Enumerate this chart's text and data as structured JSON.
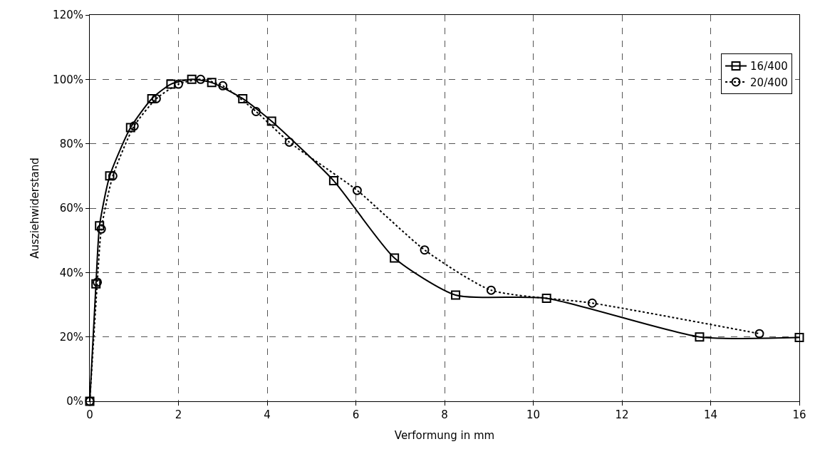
{
  "chart_data": {
    "type": "line",
    "xlabel": "Verformung in mm",
    "ylabel": "Ausziehwiderstand",
    "series": [
      {
        "name": "16/400",
        "color": "#000000",
        "marker": "square",
        "line_style": "solid",
        "x": [
          0,
          0.14,
          0.22,
          0.45,
          0.92,
          1.4,
          1.83,
          2.3,
          2.75,
          3.45,
          4.1,
          5.5,
          6.87,
          8.25,
          10.3,
          13.75,
          16
        ],
        "values": [
          0,
          36.5,
          54.5,
          70,
          85,
          94,
          98.5,
          100,
          99,
          94,
          87,
          68.5,
          44.5,
          33,
          32,
          20,
          19.8
        ]
      },
      {
        "name": "20/400",
        "color": "#000000",
        "marker": "circle",
        "line_style": "dotted",
        "x": [
          0,
          0.17,
          0.26,
          0.52,
          1.0,
          1.5,
          2.0,
          2.5,
          3.0,
          3.75,
          4.5,
          6.03,
          7.55,
          9.05,
          11.33,
          15.1
        ],
        "values": [
          0,
          37,
          53.5,
          70,
          85.5,
          94,
          98.5,
          100,
          98,
          90,
          80.5,
          65.5,
          47,
          34.5,
          30.5,
          21
        ]
      }
    ],
    "xlim": [
      0,
      16
    ],
    "xticks": [
      0,
      2,
      4,
      6,
      8,
      10,
      12,
      14,
      16
    ],
    "ylim": [
      0,
      120
    ],
    "yticks": [
      {
        "value": 0,
        "label": "0%"
      },
      {
        "value": 20,
        "label": "20%"
      },
      {
        "value": 40,
        "label": "40%"
      },
      {
        "value": 60,
        "label": "60%"
      },
      {
        "value": 80,
        "label": "80%"
      },
      {
        "value": 100,
        "label": "100%"
      },
      {
        "value": 120,
        "label": "120%"
      }
    ],
    "grid": true,
    "legend": "top right"
  }
}
